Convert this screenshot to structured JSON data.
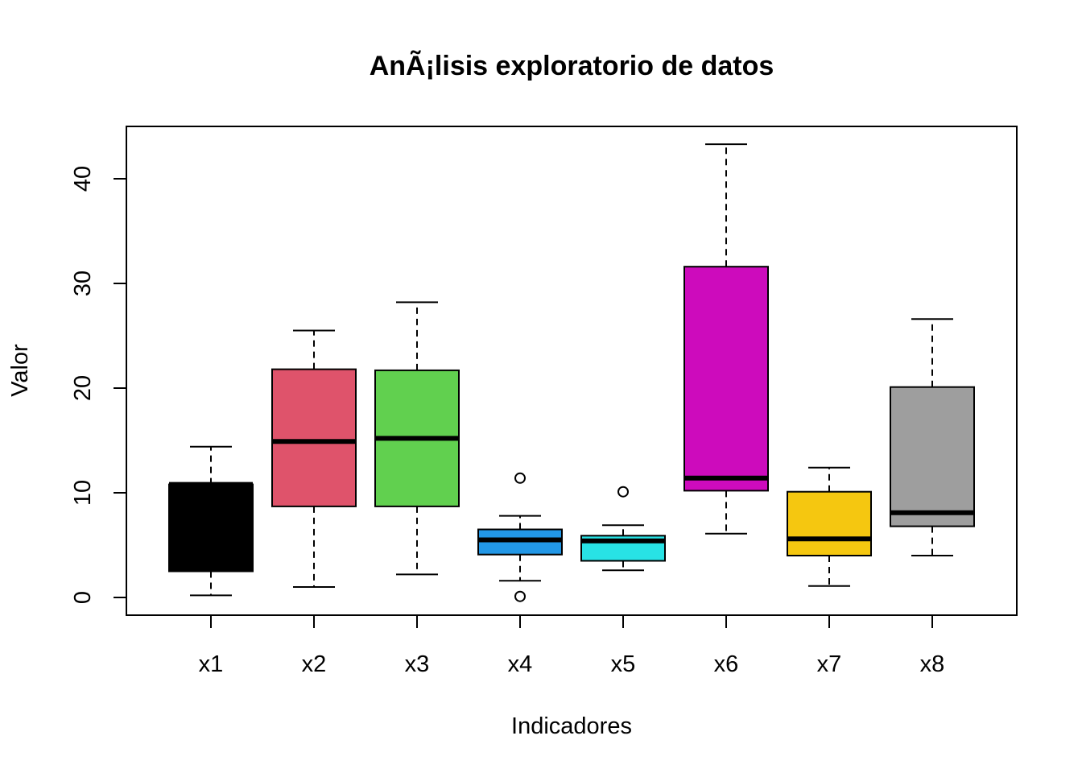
{
  "chart_data": {
    "type": "boxplot",
    "title": "AnÃ¡lisis exploratorio de datos",
    "xlabel": "Indicadores",
    "ylabel": "Valor",
    "ylim": [
      -1.7,
      45
    ],
    "yticks": [
      0,
      10,
      20,
      30,
      40
    ],
    "grid": false,
    "legend": "none",
    "series": [
      {
        "category": "x1",
        "color": "#000000",
        "min": 0.2,
        "q1": 2.5,
        "median": 10.8,
        "q3": 10.8,
        "max": 14.4,
        "outliers": []
      },
      {
        "category": "x2",
        "color": "#DF536B",
        "min": 1.0,
        "q1": 8.7,
        "median": 14.9,
        "q3": 21.8,
        "max": 25.5,
        "outliers": []
      },
      {
        "category": "x3",
        "color": "#61D04F",
        "min": 2.2,
        "q1": 8.7,
        "median": 15.2,
        "q3": 21.7,
        "max": 28.2,
        "outliers": []
      },
      {
        "category": "x4",
        "color": "#2297E6",
        "min": 1.6,
        "q1": 4.1,
        "median": 5.5,
        "q3": 6.5,
        "max": 7.8,
        "outliers": [
          11.4,
          0.1
        ]
      },
      {
        "category": "x5",
        "color": "#28E2E5",
        "min": 2.6,
        "q1": 3.5,
        "median": 5.4,
        "q3": 5.9,
        "max": 6.9,
        "outliers": [
          10.1
        ]
      },
      {
        "category": "x6",
        "color": "#CD0BBC",
        "min": 6.1,
        "q1": 10.2,
        "median": 11.4,
        "q3": 31.6,
        "max": 43.3,
        "outliers": []
      },
      {
        "category": "x7",
        "color": "#F5C710",
        "min": 1.1,
        "q1": 4.0,
        "median": 5.6,
        "q3": 10.1,
        "max": 12.4,
        "outliers": []
      },
      {
        "category": "x8",
        "color": "#9E9E9E",
        "min": 4.0,
        "q1": 6.8,
        "median": 8.1,
        "q3": 20.1,
        "max": 26.6,
        "outliers": []
      }
    ]
  }
}
